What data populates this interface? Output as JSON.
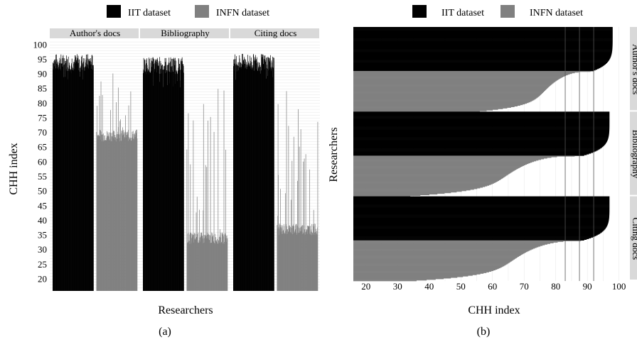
{
  "legend": {
    "iit_label": "IIT dataset",
    "infn_label": "INFN dataset"
  },
  "colors": {
    "iit": "#000000",
    "infn": "#808080",
    "strip": "#d9d9d9",
    "grid": "#e6e6e6"
  },
  "panel_a": {
    "caption": "(a)",
    "xlabel": "Researchers",
    "ylabel": "CHH index",
    "facets": [
      "Author's docs",
      "Bibliography",
      "Citing docs"
    ],
    "yticks": [
      20,
      25,
      30,
      35,
      40,
      45,
      50,
      55,
      60,
      65,
      70,
      75,
      80,
      85,
      90,
      95,
      100
    ]
  },
  "panel_b": {
    "caption": "(b)",
    "xlabel": "CHH index",
    "ylabel": "Researchers",
    "facets": [
      "Author's docs",
      "Bibliography",
      "Citing docs"
    ],
    "xticks": [
      20,
      30,
      40,
      50,
      60,
      70,
      80,
      90,
      100
    ]
  },
  "chart_data": [
    {
      "type": "bar",
      "panel": "a",
      "xlabel": "Researchers",
      "ylabel": "CHH index",
      "ylim": [
        16,
        102
      ],
      "legend_position": "top",
      "facets": [
        {
          "name": "Author's docs",
          "series": [
            {
              "name": "IIT dataset",
              "typical_range": [
                88,
                97
              ],
              "median": 94
            },
            {
              "name": "INFN dataset",
              "typical_range": [
                56,
                91
              ],
              "median": 69
            }
          ]
        },
        {
          "name": "Bibliography",
          "series": [
            {
              "name": "IIT dataset",
              "typical_range": [
                85,
                97
              ],
              "median": 93
            },
            {
              "name": "INFN dataset",
              "typical_range": [
                26,
                86
              ],
              "median": 34
            }
          ]
        },
        {
          "name": "Citing docs",
          "series": [
            {
              "name": "IIT dataset",
              "typical_range": [
                88,
                97
              ],
              "median": 94
            },
            {
              "name": "INFN dataset",
              "typical_range": [
                33,
                88
              ],
              "median": 37
            }
          ]
        }
      ]
    },
    {
      "type": "bar",
      "orientation": "horizontal",
      "panel": "b",
      "xlabel": "CHH index",
      "ylabel": "Researchers",
      "xlim": [
        16,
        103
      ],
      "legend_position": "top",
      "reference_lines": [
        83,
        87.5,
        92
      ],
      "facets": [
        {
          "name": "Author's docs",
          "iit_sorted_range": [
            92,
            98
          ],
          "infn_sorted_range": [
            56,
            91
          ]
        },
        {
          "name": "Bibliography",
          "iit_sorted_range": [
            89,
            97
          ],
          "infn_sorted_range": [
            34,
            86
          ]
        },
        {
          "name": "Citing docs",
          "iit_sorted_range": [
            89,
            97
          ],
          "infn_sorted_range": [
            36,
            88
          ]
        }
      ]
    }
  ]
}
